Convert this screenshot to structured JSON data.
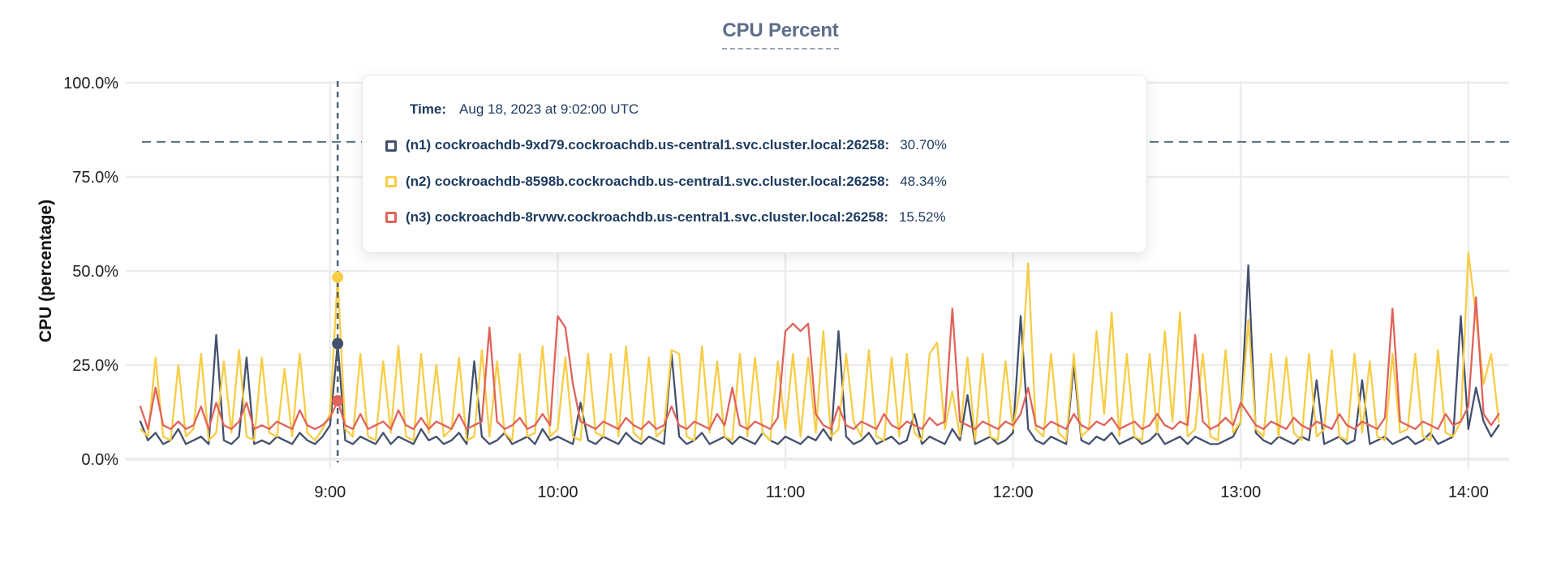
{
  "tooltip": {
    "time_label": "Time:",
    "time_value": "Aug 18, 2023 at 9:02:00 UTC",
    "rows": [
      {
        "id": "n1",
        "label": "(n1) cockroachdb-9xd79.cockroachdb.us-central1.svc.cluster.local:26258:",
        "value": "30.70%",
        "color": "#44516d"
      },
      {
        "id": "n2",
        "label": "(n2) cockroachdb-8598b.cockroachdb.us-central1.svc.cluster.local:26258:",
        "value": "48.34%",
        "color": "#f7cd45"
      },
      {
        "id": "n3",
        "label": "(n3) cockroachdb-8rvwv.cockroachdb.us-central1.svc.cluster.local:26258:",
        "value": "15.52%",
        "color": "#e0635c"
      }
    ]
  },
  "chart_data": {
    "type": "line",
    "title": "CPU Percent",
    "ylabel": "CPU (percentage)",
    "ylim": [
      0,
      100
    ],
    "grid": true,
    "legend_position": "tooltip-overlay",
    "y_ticks": [
      {
        "value": 0,
        "label": "0.0%"
      },
      {
        "value": 25,
        "label": "25.0%"
      },
      {
        "value": 50,
        "label": "50.0%"
      },
      {
        "value": 75,
        "label": "75.0%"
      },
      {
        "value": 100,
        "label": "100.0%"
      }
    ],
    "x_ticks": [
      {
        "minute": 50,
        "label": "9:00"
      },
      {
        "minute": 110,
        "label": "10:00"
      },
      {
        "minute": 170,
        "label": "11:00"
      },
      {
        "minute": 230,
        "label": "12:00"
      },
      {
        "minute": 290,
        "label": "13:00"
      },
      {
        "minute": 350,
        "label": "14:00"
      }
    ],
    "x_minutes_range": [
      0,
      358
    ],
    "sample_step_minutes": 2,
    "threshold_percent": 84.3,
    "hover": {
      "minute": 52,
      "time": "Aug 18, 2023 at 9:02:00 UTC",
      "points": [
        {
          "series": "n1",
          "value": 30.7
        },
        {
          "series": "n2",
          "value": 48.34
        },
        {
          "series": "n3",
          "value": 15.52
        }
      ]
    },
    "series": [
      {
        "id": "n1",
        "name": "(n1) cockroachdb-9xd79.cockroachdb.us-central1.svc.cluster.local:26258",
        "color": "#44516d",
        "values": [
          10,
          5,
          7,
          4,
          5,
          8,
          4,
          5,
          6,
          4,
          33,
          5,
          4,
          6,
          27,
          4,
          5,
          4,
          6,
          5,
          4,
          7,
          5,
          4,
          6,
          9,
          30.7,
          5,
          4,
          6,
          5,
          4,
          7,
          4,
          6,
          5,
          4,
          8,
          5,
          6,
          4,
          5,
          7,
          4,
          26,
          6,
          4,
          5,
          7,
          4,
          5,
          6,
          4,
          8,
          5,
          6,
          5,
          4,
          15,
          5,
          4,
          6,
          5,
          4,
          7,
          5,
          4,
          6,
          5,
          4,
          28,
          6,
          4,
          5,
          7,
          4,
          5,
          6,
          4,
          6,
          5,
          4,
          7,
          5,
          4,
          6,
          5,
          4,
          6,
          5,
          8,
          5,
          34,
          6,
          4,
          5,
          7,
          4,
          5,
          6,
          4,
          5,
          12,
          4,
          6,
          5,
          4,
          8,
          5,
          17,
          4,
          5,
          6,
          4,
          5,
          7,
          38,
          8,
          5,
          4,
          6,
          5,
          4,
          25,
          5,
          4,
          6,
          5,
          7,
          4,
          5,
          6,
          4,
          5,
          7,
          4,
          5,
          6,
          4,
          6,
          5,
          4,
          4,
          5,
          6,
          10,
          51.5,
          7,
          5,
          4,
          6,
          5,
          4,
          6,
          5,
          21,
          4,
          5,
          6,
          4,
          5,
          21,
          4,
          5,
          6,
          4,
          5,
          6,
          4,
          5,
          7,
          4,
          5,
          6,
          38,
          8,
          19,
          10,
          6,
          9
        ]
      },
      {
        "id": "n2",
        "name": "(n2) cockroachdb-8598b.cockroachdb.us-central1.svc.cluster.local:26258",
        "color": "#f7cd45",
        "values": [
          8,
          6,
          27,
          6,
          5,
          25,
          6,
          8,
          28,
          5,
          7,
          26,
          7,
          29,
          6,
          5,
          27,
          7,
          6,
          24,
          6,
          28,
          7,
          5,
          8,
          12,
          48.3,
          8,
          6,
          28,
          6,
          5,
          26,
          7,
          30,
          6,
          5,
          28,
          7,
          25,
          6,
          8,
          27,
          5,
          6,
          29,
          6,
          26,
          7,
          5,
          28,
          6,
          7,
          30,
          6,
          8,
          27,
          6,
          5,
          28,
          7,
          6,
          28,
          6,
          30,
          7,
          5,
          27,
          6,
          8,
          29,
          28,
          6,
          5,
          30,
          7,
          26,
          6,
          5,
          28,
          6,
          27,
          7,
          5,
          26,
          8,
          28,
          6,
          27,
          7,
          34,
          6,
          8,
          28,
          10,
          6,
          29,
          6,
          5,
          27,
          6,
          28,
          7,
          5,
          28,
          31,
          8,
          18,
          6,
          27,
          5,
          28,
          6,
          5,
          26,
          8,
          20,
          52,
          8,
          6,
          28,
          7,
          5,
          28,
          6,
          8,
          34,
          12,
          39,
          6,
          28,
          6,
          5,
          28,
          7,
          34,
          10,
          39,
          6,
          8,
          28,
          6,
          5,
          29,
          7,
          10,
          37,
          8,
          6,
          28,
          6,
          27,
          7,
          5,
          28,
          6,
          8,
          29,
          6,
          5,
          28,
          7,
          26,
          6,
          5,
          28,
          7,
          8,
          28,
          6,
          5,
          29,
          7,
          6,
          10,
          55,
          38,
          20,
          28,
          10
        ]
      },
      {
        "id": "n3",
        "name": "(n3) cockroachdb-8rvwv.cockroachdb.us-central1.svc.cluster.local:26258",
        "color": "#e0635c",
        "values": [
          14,
          8,
          19,
          9,
          8,
          10,
          8,
          9,
          14,
          8,
          15,
          9,
          8,
          10,
          15,
          8,
          9,
          8,
          10,
          9,
          8,
          13,
          9,
          8,
          9,
          11,
          15.5,
          9,
          8,
          12,
          8,
          9,
          10,
          8,
          13,
          9,
          8,
          11,
          8,
          10,
          9,
          8,
          12,
          8,
          9,
          10,
          35,
          10,
          8,
          9,
          11,
          8,
          9,
          12,
          9,
          38,
          35,
          20,
          10,
          9,
          8,
          10,
          9,
          8,
          11,
          9,
          8,
          10,
          8,
          9,
          14,
          9,
          8,
          10,
          9,
          8,
          12,
          9,
          19,
          9,
          8,
          10,
          9,
          8,
          11,
          34,
          36,
          34,
          36,
          12,
          9,
          8,
          14,
          9,
          8,
          10,
          9,
          8,
          12,
          9,
          8,
          10,
          9,
          8,
          11,
          9,
          10,
          40,
          10,
          9,
          8,
          10,
          9,
          8,
          10,
          9,
          12,
          19,
          9,
          8,
          10,
          9,
          8,
          12,
          9,
          8,
          10,
          9,
          11,
          8,
          9,
          10,
          8,
          9,
          12,
          9,
          8,
          10,
          9,
          33,
          10,
          8,
          9,
          11,
          9,
          15,
          12,
          9,
          8,
          10,
          9,
          8,
          11,
          9,
          8,
          10,
          9,
          8,
          12,
          9,
          8,
          10,
          9,
          8,
          11,
          40,
          10,
          9,
          8,
          10,
          9,
          8,
          12,
          9,
          10,
          14,
          43,
          12,
          9,
          12
        ]
      }
    ]
  }
}
